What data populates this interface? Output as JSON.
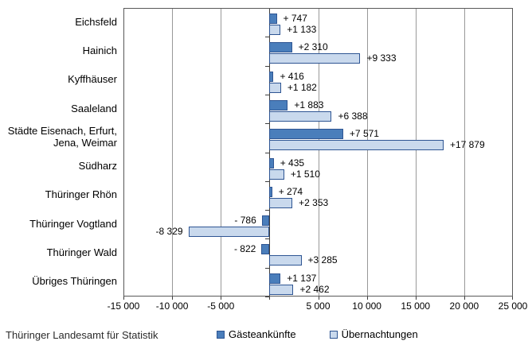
{
  "footer": {
    "source": "Thüringer Landesamt für Statistik"
  },
  "legend": {
    "items": [
      {
        "label": "Gästeankünfte",
        "color": "#4a7ebb",
        "border": "#2e5593"
      },
      {
        "label": "Übernachtungen",
        "color": "#c9d9ed",
        "border": "#2e5593"
      }
    ]
  },
  "colors": {
    "bar_dark": "#4a7ebb",
    "bar_light": "#c9d9ed",
    "bar_border": "#2e5593",
    "gridline": "#999999",
    "plot_border": "#595959",
    "axis": "#3f3f3f",
    "label_text": "#000000",
    "source_text": "#2b2b2b"
  },
  "chart_data": {
    "type": "bar",
    "orientation": "horizontal",
    "title": "",
    "categories": [
      "Eichsfeld",
      "Hainich",
      "Kyffhäuser",
      "Saaleland",
      "Städte Eisenach, Erfurt, Jena, Weimar",
      "Südharz",
      "Thüringer Rhön",
      "Thüringer Vogtland",
      "Thüringer Wald",
      "Übriges Thüringen"
    ],
    "series": [
      {
        "name": "Gästeankünfte",
        "color": "#4a7ebb",
        "values": [
          747,
          2310,
          416,
          1883,
          7571,
          435,
          274,
          -786,
          -822,
          1137
        ],
        "data_labels": [
          "+ 747",
          "+2 310",
          "+ 416",
          "+1 883",
          "+7 571",
          "+ 435",
          "+ 274",
          "- 786",
          "- 822",
          "+1 137"
        ]
      },
      {
        "name": "Übernachtungen",
        "color": "#c9d9ed",
        "values": [
          1133,
          9333,
          1182,
          6388,
          17879,
          1510,
          2353,
          -8329,
          3285,
          2462
        ],
        "data_labels": [
          "+1 133",
          "+9 333",
          "+1 182",
          "+6 388",
          "+17 879",
          "+1 510",
          "+2 353",
          "-8 329",
          "+3 285",
          "+2 462"
        ]
      }
    ],
    "xlim": [
      -15000,
      25000
    ],
    "x_ticks": [
      {
        "value": -15000,
        "label": "-15 000"
      },
      {
        "value": -10000,
        "label": "-10 000"
      },
      {
        "value": -5000,
        "label": "-5 000"
      },
      {
        "value": 5000,
        "label": "5 000"
      },
      {
        "value": 10000,
        "label": "10 000"
      },
      {
        "value": 15000,
        "label": "15 000"
      },
      {
        "value": 20000,
        "label": "20 000"
      },
      {
        "value": 25000,
        "label": "25 000"
      }
    ],
    "axis_tick_values": [
      -15000,
      -10000,
      -5000,
      0,
      5000,
      10000,
      15000,
      20000,
      25000
    ],
    "gridline_values": [
      -10000,
      -5000,
      5000,
      10000,
      15000,
      20000
    ],
    "grid": true,
    "legend_position": "bottom"
  }
}
